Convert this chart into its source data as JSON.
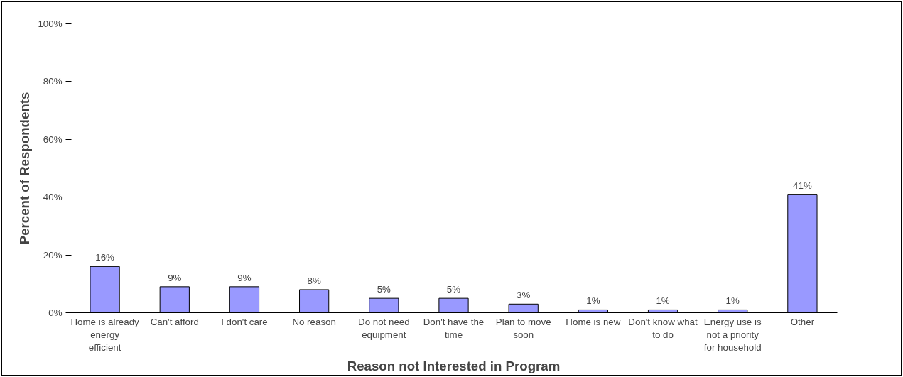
{
  "chart_data": {
    "type": "bar",
    "xlabel": "Reason not Interested in Program",
    "ylabel": "Percent of Respondents",
    "categories": [
      "Home is already energy efficient",
      "Can't afford",
      "I don't care",
      "No reason",
      "Do not need equipment",
      "Don't have the time",
      "Plan to move soon",
      "Home is new",
      "Don't know what to do",
      "Energy use is not a priority for household",
      "Other"
    ],
    "values": [
      16,
      9,
      9,
      8,
      5,
      5,
      3,
      1,
      1,
      1,
      41
    ],
    "value_labels": [
      "16%",
      "9%",
      "9%",
      "8%",
      "5%",
      "5%",
      "3%",
      "1%",
      "1%",
      "1%",
      "41%"
    ],
    "color": "#9999ff",
    "ylim": [
      0,
      100
    ],
    "yticks": [
      {
        "value": 0,
        "label": "0%"
      },
      {
        "value": 20,
        "label": "20%"
      },
      {
        "value": 40,
        "label": "40%"
      },
      {
        "value": 60,
        "label": "60%"
      },
      {
        "value": 80,
        "label": "80%"
      },
      {
        "value": 100,
        "label": "100%"
      }
    ],
    "grid": false
  }
}
